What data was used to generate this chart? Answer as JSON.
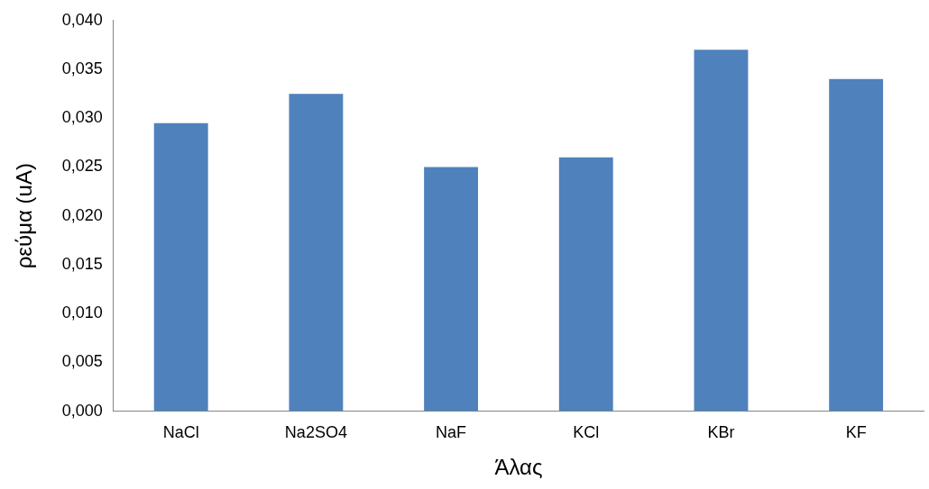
{
  "chart_data": {
    "type": "bar",
    "xlabel": "Άλας",
    "ylabel": "ρεύμα (uA)",
    "categories": [
      "NaCl",
      "Na2SO4",
      "NaF",
      "KCl",
      "KBr",
      "KF"
    ],
    "values": [
      0.0295,
      0.0325,
      0.025,
      0.026,
      0.037,
      0.034
    ],
    "color": "#4f81bd",
    "ylim": [
      0,
      0.04
    ],
    "yticks": [
      {
        "value": 0,
        "label": "0,000"
      },
      {
        "value": 0.005,
        "label": "0,005"
      },
      {
        "value": 0.01,
        "label": "0,010"
      },
      {
        "value": 0.015,
        "label": "0,015"
      },
      {
        "value": 0.02,
        "label": "0,020"
      },
      {
        "value": 0.025,
        "label": "0,025"
      },
      {
        "value": 0.03,
        "label": "0,030"
      },
      {
        "value": 0.035,
        "label": "0,035"
      },
      {
        "value": 0.04,
        "label": "0,040"
      }
    ],
    "grid": false,
    "legend": false
  }
}
